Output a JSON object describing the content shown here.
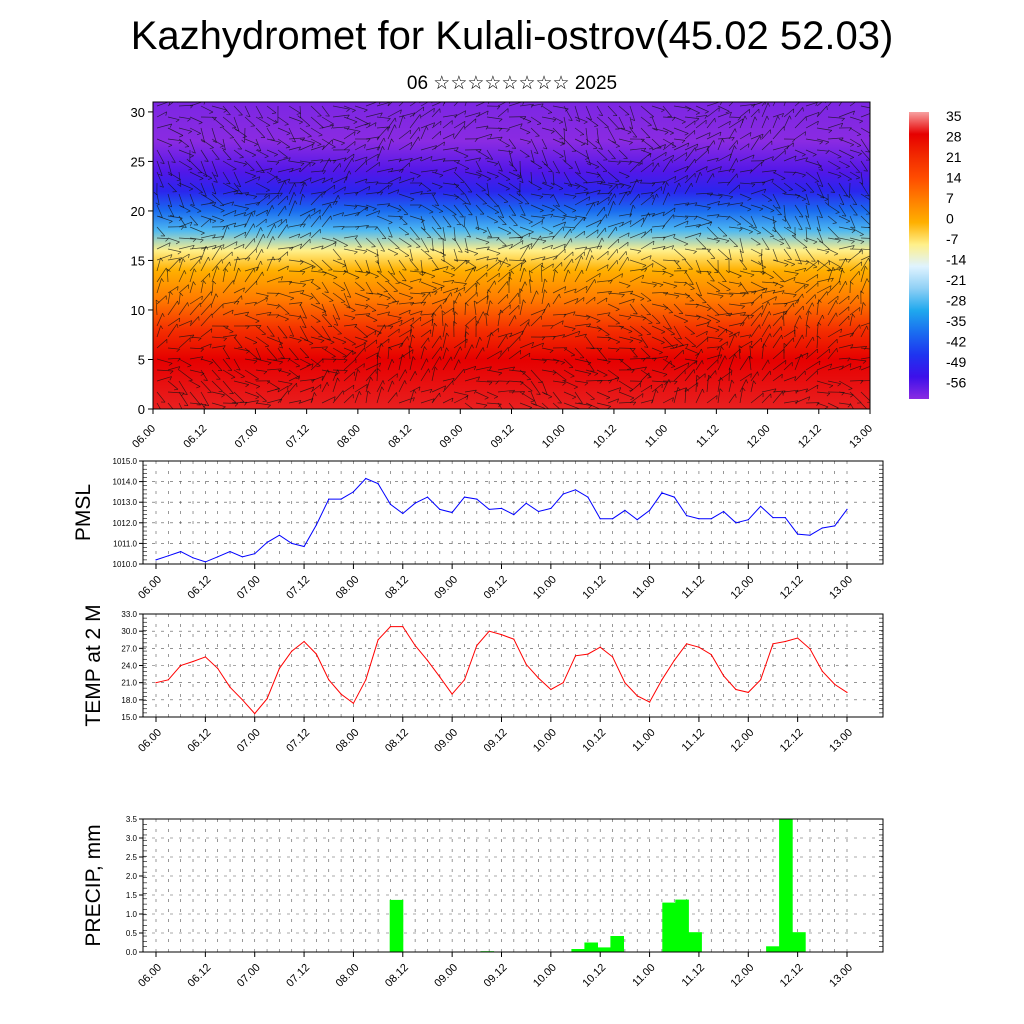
{
  "header": {
    "title": "Kazhydromet for Kulali-ostrov(45.02 52.03)",
    "subtitle": "06 ☆☆☆☆☆☆☆☆ 2025"
  },
  "time_labels": [
    "06.00",
    "06.12",
    "07.00",
    "07.12",
    "08.00",
    "08.12",
    "09.00",
    "09.12",
    "10.00",
    "10.12",
    "11.00",
    "11.12",
    "12.00",
    "12.12",
    "13.00"
  ],
  "colorbar": {
    "labels": [
      "35",
      "28",
      "21",
      "14",
      "7",
      "0",
      "-7",
      "-14",
      "-21",
      "-28",
      "-35",
      "-42",
      "-49",
      "-56"
    ],
    "colors": [
      "#f7a1a1",
      "#e60000",
      "#f22a00",
      "#ff4d00",
      "#ff8000",
      "#ffb000",
      "#fff08a",
      "#dff3ff",
      "#8fd0f5",
      "#1fa8ee",
      "#1a6cf0",
      "#1e34f0",
      "#3d10ea",
      "#8a2be2"
    ]
  },
  "chart_data": [
    {
      "type": "heatmap",
      "title": "Kazhydromet for Kulali-ostrov(45.02 52.03)",
      "subtitle": "06 ☆☆☆☆☆☆☆☆ 2025",
      "x_ticks": [
        "06.00",
        "06.12",
        "07.00",
        "07.12",
        "08.00",
        "08.12",
        "09.00",
        "09.12",
        "10.00",
        "10.12",
        "11.00",
        "11.12",
        "12.00",
        "12.12",
        "13.00"
      ],
      "y_ticks": [
        0,
        5,
        10,
        15,
        20,
        25,
        30
      ],
      "ylim": [
        0,
        31
      ],
      "colorbar_range": [
        -56,
        35
      ],
      "temperature_profile": [
        {
          "level": 0,
          "value": 31
        },
        {
          "level": 5,
          "value": 30
        },
        {
          "level": 8,
          "value": 20
        },
        {
          "level": 11,
          "value": 8
        },
        {
          "level": 14,
          "value": 0
        },
        {
          "level": 16,
          "value": -7
        },
        {
          "level": 18,
          "value": -25
        },
        {
          "level": 20,
          "value": -35
        },
        {
          "level": 22,
          "value": -45
        },
        {
          "level": 24,
          "value": -52
        },
        {
          "level": 27,
          "value": -60
        },
        {
          "level": 31,
          "value": -58
        }
      ],
      "wind_vectors": true
    },
    {
      "type": "line",
      "ylabel": "PMSL",
      "y_ticks": [
        "1010.0",
        "1011.0",
        "1012.0",
        "1013.0",
        "1014.0",
        "1015.0"
      ],
      "ylim": [
        1010,
        1015
      ],
      "x_ticks": [
        "06.00",
        "06.12",
        "07.00",
        "07.12",
        "08.00",
        "08.12",
        "09.00",
        "09.12",
        "10.00",
        "10.12",
        "11.00",
        "11.12",
        "12.00",
        "12.12",
        "13.00"
      ],
      "color": "#0000ff",
      "values": [
        1010.2,
        1010.4,
        1010.6,
        1010.3,
        1010.1,
        1010.35,
        1010.6,
        1010.35,
        1010.5,
        1011.05,
        1011.4,
        1011.0,
        1010.85,
        1011.9,
        1013.15,
        1013.15,
        1013.5,
        1014.15,
        1013.9,
        1012.9,
        1012.45,
        1012.95,
        1013.25,
        1012.65,
        1012.5,
        1013.25,
        1013.15,
        1012.65,
        1012.7,
        1012.4,
        1012.95,
        1012.55,
        1012.7,
        1013.4,
        1013.6,
        1013.25,
        1012.2,
        1012.2,
        1012.6,
        1012.15,
        1012.6,
        1013.45,
        1013.25,
        1012.35,
        1012.2,
        1012.2,
        1012.55,
        1012.0,
        1012.15,
        1012.8,
        1012.25,
        1012.25,
        1011.45,
        1011.4,
        1011.75,
        1011.85,
        1012.65
      ]
    },
    {
      "type": "line",
      "ylabel": "TEMP at 2 M",
      "y_ticks": [
        "15.0",
        "18.0",
        "21.0",
        "24.0",
        "27.0",
        "30.0",
        "33.0"
      ],
      "ylim": [
        15,
        33
      ],
      "x_ticks": [
        "06.00",
        "06.12",
        "07.00",
        "07.12",
        "08.00",
        "08.12",
        "09.00",
        "09.12",
        "10.00",
        "10.12",
        "11.00",
        "11.12",
        "12.00",
        "12.12",
        "13.00"
      ],
      "color": "#ff0000",
      "values": [
        21.0,
        21.5,
        24.0,
        24.7,
        25.5,
        23.5,
        20.2,
        18.0,
        15.6,
        18.2,
        23.5,
        26.5,
        28.2,
        26.0,
        21.5,
        19.0,
        17.4,
        21.5,
        28.5,
        30.8,
        30.8,
        27.5,
        24.9,
        22.0,
        19.0,
        21.5,
        27.5,
        30.0,
        29.4,
        28.6,
        24.2,
        21.8,
        19.8,
        21.0,
        25.7,
        26.0,
        27.2,
        25.5,
        21.0,
        18.7,
        17.6,
        21.5,
        24.9,
        27.8,
        27.2,
        25.9,
        22.2,
        19.8,
        19.3,
        21.5,
        27.8,
        28.2,
        28.8,
        26.9,
        23.0,
        20.7,
        19.3
      ]
    },
    {
      "type": "bar",
      "ylabel": "PRECIP, mm",
      "y_ticks": [
        "0.0",
        "0.5",
        "1.0",
        "1.5",
        "2.0",
        "2.5",
        "3.0",
        "3.5"
      ],
      "ylim": [
        0,
        3.5
      ],
      "x_ticks": [
        "06.00",
        "06.12",
        "07.00",
        "07.12",
        "08.00",
        "08.12",
        "09.00",
        "09.12",
        "10.00",
        "10.12",
        "11.00",
        "11.12",
        "12.00",
        "12.12",
        "13.00"
      ],
      "color": "#00ff00",
      "values": [
        0,
        0,
        0,
        0,
        0,
        0,
        0,
        0,
        0,
        0,
        0,
        0,
        0,
        0,
        0,
        0,
        0,
        0,
        0,
        1.37,
        0,
        0,
        0,
        0,
        0,
        0,
        0.02,
        0,
        0,
        0,
        0,
        0,
        0,
        0.08,
        0.25,
        0.12,
        0.42,
        0,
        0,
        0,
        1.3,
        1.38,
        0.52,
        0,
        0,
        0,
        0,
        0,
        0.15,
        3.5,
        0.52,
        0,
        0,
        0,
        0,
        0
      ]
    }
  ]
}
